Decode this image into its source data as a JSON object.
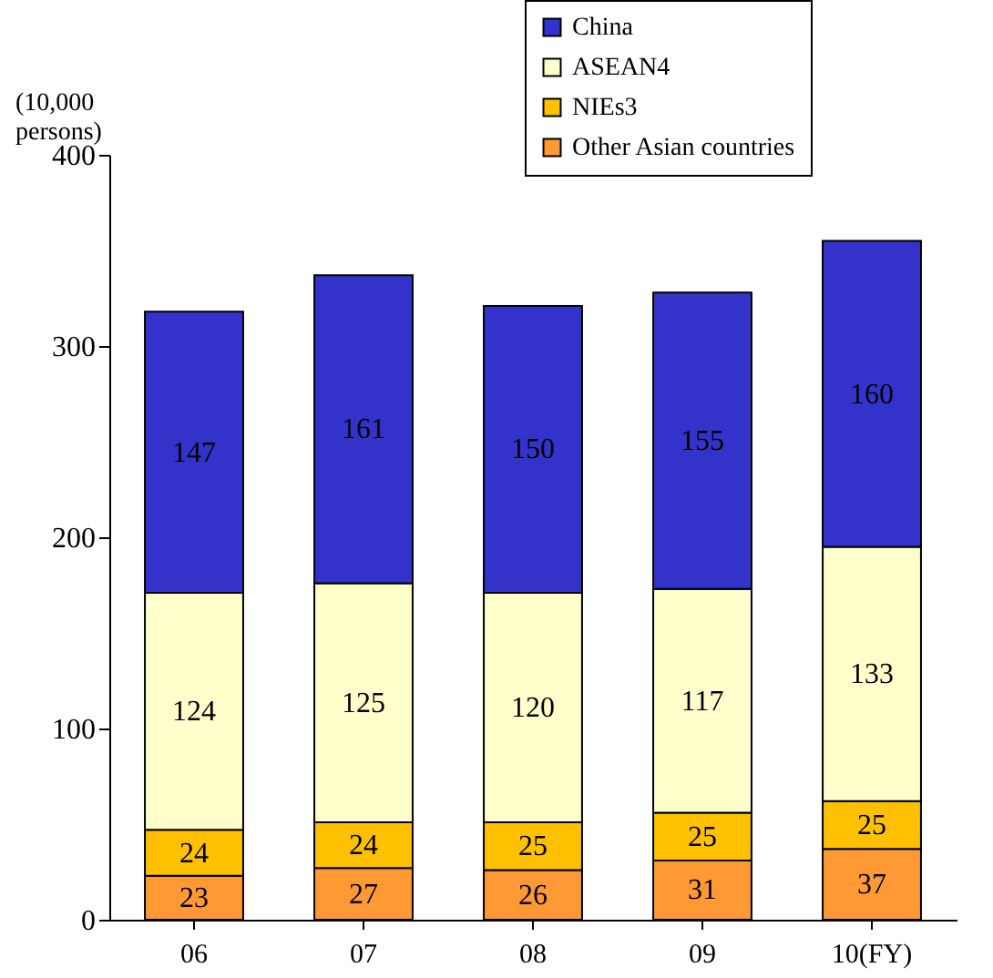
{
  "chart_data": {
    "type": "bar",
    "stacked": true,
    "ylabel": "(10,000 persons)",
    "categories": [
      "06",
      "07",
      "08",
      "09",
      "10(FY)"
    ],
    "series": [
      {
        "name": "Other Asian countries",
        "color": "#ff9933",
        "values": [
          23,
          27,
          26,
          31,
          37
        ]
      },
      {
        "name": "NIEs3",
        "color": "#ffc000",
        "values": [
          24,
          24,
          25,
          25,
          25
        ]
      },
      {
        "name": "ASEAN4",
        "color": "#ffffcc",
        "values": [
          124,
          125,
          120,
          117,
          133
        ]
      },
      {
        "name": "China",
        "color": "#3333cc",
        "values": [
          147,
          161,
          150,
          155,
          160
        ]
      }
    ],
    "ylim": [
      0,
      400
    ],
    "yticks": [
      0,
      100,
      200,
      300,
      400
    ],
    "grid": false,
    "legend": "top right",
    "data_labels": true
  }
}
